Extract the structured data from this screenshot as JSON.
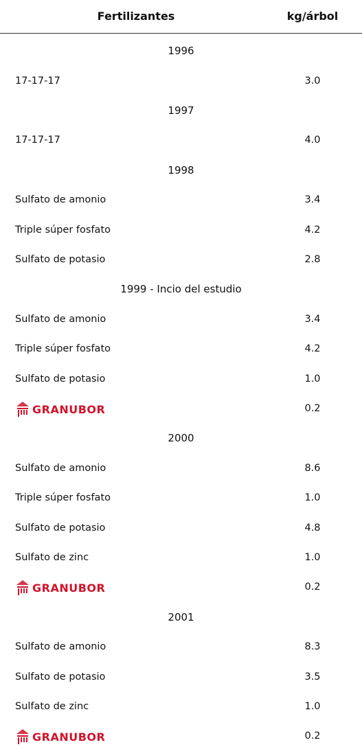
{
  "header": {
    "col1": "Fertilizantes",
    "col2": "kg/árbol"
  },
  "sections": [
    {
      "title": "1996",
      "rows": [
        {
          "name": "17-17-17",
          "value": "3.0"
        }
      ]
    },
    {
      "title": "1997",
      "rows": [
        {
          "name": "17-17-17",
          "value": "4.0"
        }
      ]
    },
    {
      "title": "1998",
      "rows": [
        {
          "name": "Sulfato de amonio",
          "value": "3.4"
        },
        {
          "name": "Triple súper fosfato",
          "value": "4.2"
        },
        {
          "name": "Sulfato de potasio",
          "value": "2.8"
        }
      ]
    },
    {
      "title": "1999 - Incio del estudio",
      "rows": [
        {
          "name": "Sulfato de amonio",
          "value": "3.4"
        },
        {
          "name": "Triple súper fosfato",
          "value": "4.2"
        },
        {
          "name": "Sulfato de potasio",
          "value": "1.0"
        },
        {
          "name": "GRANUBOR",
          "value": "0.2",
          "logo": true
        }
      ]
    },
    {
      "title": "2000",
      "rows": [
        {
          "name": "Sulfato de amonio",
          "value": "8.6"
        },
        {
          "name": "Triple súper fosfato",
          "value": "1.0"
        },
        {
          "name": "Sulfato de potasio",
          "value": "4.8"
        },
        {
          "name": "Sulfato de zinc",
          "value": "1.0"
        },
        {
          "name": "GRANUBOR",
          "value": "0.2",
          "logo": true
        }
      ]
    },
    {
      "title": "2001",
      "rows": [
        {
          "name": "Sulfato de amonio",
          "value": "8.3"
        },
        {
          "name": "Sulfato de potasio",
          "value": "3.5"
        },
        {
          "name": "Sulfato de zinc",
          "value": "1.0"
        },
        {
          "name": "GRANUBOR",
          "value": "0.2",
          "logo": true
        }
      ]
    }
  ]
}
